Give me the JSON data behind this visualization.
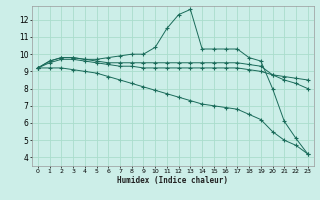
{
  "xlabel": "Humidex (Indice chaleur)",
  "bg_color": "#cceee8",
  "grid_color": "#aaddcc",
  "line_color": "#1a6b5a",
  "xlim": [
    -0.5,
    23.5
  ],
  "ylim": [
    3.5,
    12.8
  ],
  "yticks": [
    4,
    5,
    6,
    7,
    8,
    9,
    10,
    11,
    12
  ],
  "xticks": [
    0,
    1,
    2,
    3,
    4,
    5,
    6,
    7,
    8,
    9,
    10,
    11,
    12,
    13,
    14,
    15,
    16,
    17,
    18,
    19,
    20,
    21,
    22,
    23
  ],
  "series": [
    {
      "x": [
        0,
        1,
        2,
        3,
        4,
        5,
        6,
        7,
        8,
        9,
        10,
        11,
        12,
        13,
        14,
        15,
        16,
        17,
        18,
        19,
        20,
        21,
        22,
        23
      ],
      "y": [
        9.2,
        9.6,
        9.8,
        9.8,
        9.7,
        9.7,
        9.8,
        9.9,
        10.0,
        10.0,
        10.4,
        11.5,
        12.3,
        12.6,
        10.3,
        10.3,
        10.3,
        10.3,
        9.8,
        9.6,
        8.0,
        6.1,
        5.1,
        4.2
      ]
    },
    {
      "x": [
        0,
        1,
        2,
        3,
        4,
        5,
        6,
        7,
        8,
        9,
        10,
        11,
        12,
        13,
        14,
        15,
        16,
        17,
        18,
        19,
        20,
        21,
        22,
        23
      ],
      "y": [
        9.2,
        9.6,
        9.8,
        9.8,
        9.7,
        9.6,
        9.5,
        9.5,
        9.5,
        9.5,
        9.5,
        9.5,
        9.5,
        9.5,
        9.5,
        9.5,
        9.5,
        9.5,
        9.4,
        9.3,
        8.8,
        8.7,
        8.6,
        8.5
      ]
    },
    {
      "x": [
        0,
        1,
        2,
        3,
        4,
        5,
        6,
        7,
        8,
        9,
        10,
        11,
        12,
        13,
        14,
        15,
        16,
        17,
        18,
        19,
        20,
        21,
        22,
        23
      ],
      "y": [
        9.2,
        9.2,
        9.2,
        9.1,
        9.0,
        8.9,
        8.7,
        8.5,
        8.3,
        8.1,
        7.9,
        7.7,
        7.5,
        7.3,
        7.1,
        7.0,
        6.9,
        6.8,
        6.5,
        6.2,
        5.5,
        5.0,
        4.7,
        4.2
      ]
    },
    {
      "x": [
        0,
        1,
        2,
        3,
        4,
        5,
        6,
        7,
        8,
        9,
        10,
        11,
        12,
        13,
        14,
        15,
        16,
        17,
        18,
        19,
        20,
        21,
        22,
        23
      ],
      "y": [
        9.2,
        9.5,
        9.7,
        9.7,
        9.6,
        9.5,
        9.4,
        9.3,
        9.3,
        9.2,
        9.2,
        9.2,
        9.2,
        9.2,
        9.2,
        9.2,
        9.2,
        9.2,
        9.1,
        9.0,
        8.8,
        8.5,
        8.3,
        8.0
      ]
    }
  ]
}
